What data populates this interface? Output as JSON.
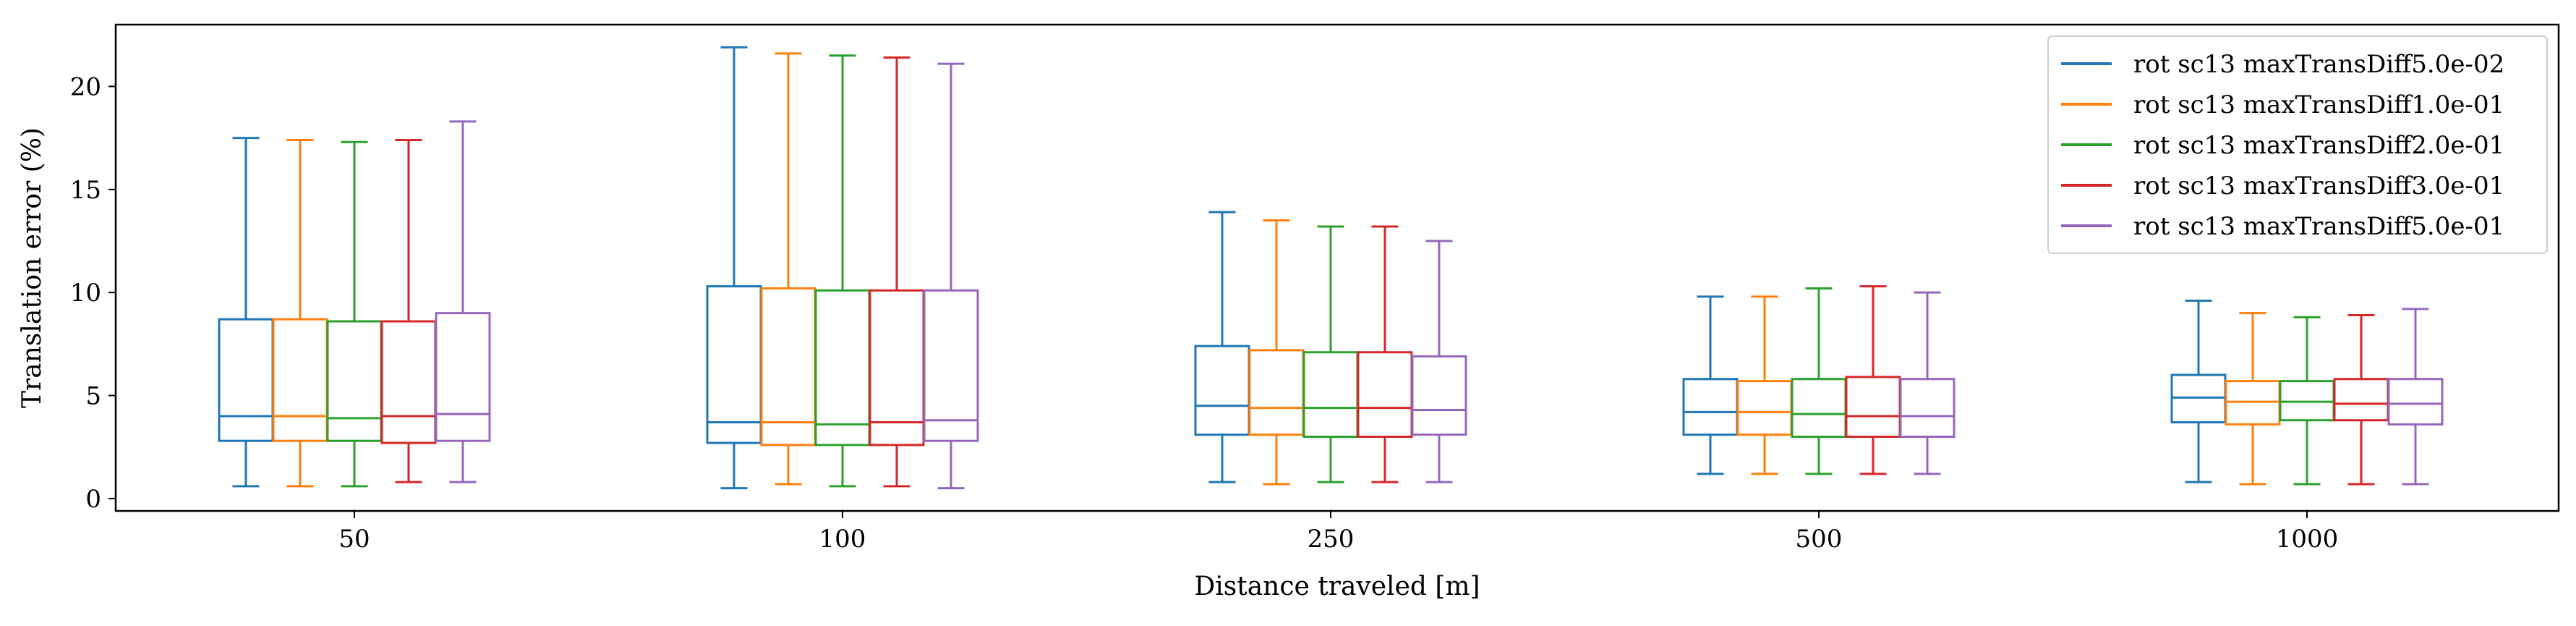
{
  "chart_data": {
    "type": "box",
    "xlabel": "Distance traveled [m]",
    "ylabel": "Translation error (%)",
    "categories": [
      "50",
      "100",
      "250",
      "500",
      "1000"
    ],
    "ylim": [
      -0.6,
      23.0
    ],
    "yticks": [
      0,
      5,
      10,
      15,
      20
    ],
    "grid": false,
    "legend_position": "top-right",
    "colors": [
      "#1f77b4",
      "#ff7f0e",
      "#2ca02c",
      "#d62728",
      "#9467bd"
    ],
    "series": [
      {
        "name": "rot sc13 maxTransDiff5.0e-02",
        "boxes": [
          {
            "min": 0.6,
            "q1": 2.8,
            "median": 4.0,
            "q3": 8.7,
            "max": 17.5
          },
          {
            "min": 0.5,
            "q1": 2.7,
            "median": 3.7,
            "q3": 10.3,
            "max": 21.9
          },
          {
            "min": 0.8,
            "q1": 3.1,
            "median": 4.5,
            "q3": 7.4,
            "max": 13.9
          },
          {
            "min": 1.2,
            "q1": 3.1,
            "median": 4.2,
            "q3": 5.8,
            "max": 9.8
          },
          {
            "min": 0.8,
            "q1": 3.7,
            "median": 4.9,
            "q3": 6.0,
            "max": 9.6
          }
        ]
      },
      {
        "name": "rot sc13 maxTransDiff1.0e-01",
        "boxes": [
          {
            "min": 0.6,
            "q1": 2.8,
            "median": 4.0,
            "q3": 8.7,
            "max": 17.4
          },
          {
            "min": 0.7,
            "q1": 2.6,
            "median": 3.7,
            "q3": 10.2,
            "max": 21.6
          },
          {
            "min": 0.7,
            "q1": 3.1,
            "median": 4.4,
            "q3": 7.2,
            "max": 13.5
          },
          {
            "min": 1.2,
            "q1": 3.1,
            "median": 4.2,
            "q3": 5.7,
            "max": 9.8
          },
          {
            "min": 0.7,
            "q1": 3.6,
            "median": 4.7,
            "q3": 5.7,
            "max": 9.0
          }
        ]
      },
      {
        "name": "rot sc13 maxTransDiff2.0e-01",
        "boxes": [
          {
            "min": 0.6,
            "q1": 2.8,
            "median": 3.9,
            "q3": 8.6,
            "max": 17.3
          },
          {
            "min": 0.6,
            "q1": 2.6,
            "median": 3.6,
            "q3": 10.1,
            "max": 21.5
          },
          {
            "min": 0.8,
            "q1": 3.0,
            "median": 4.4,
            "q3": 7.1,
            "max": 13.2
          },
          {
            "min": 1.2,
            "q1": 3.0,
            "median": 4.1,
            "q3": 5.8,
            "max": 10.2
          },
          {
            "min": 0.7,
            "q1": 3.8,
            "median": 4.7,
            "q3": 5.7,
            "max": 8.8
          }
        ]
      },
      {
        "name": "rot sc13 maxTransDiff3.0e-01",
        "boxes": [
          {
            "min": 0.8,
            "q1": 2.7,
            "median": 4.0,
            "q3": 8.6,
            "max": 17.4
          },
          {
            "min": 0.6,
            "q1": 2.6,
            "median": 3.7,
            "q3": 10.1,
            "max": 21.4
          },
          {
            "min": 0.8,
            "q1": 3.0,
            "median": 4.4,
            "q3": 7.1,
            "max": 13.2
          },
          {
            "min": 1.2,
            "q1": 3.0,
            "median": 4.0,
            "q3": 5.9,
            "max": 10.3
          },
          {
            "min": 0.7,
            "q1": 3.8,
            "median": 4.6,
            "q3": 5.8,
            "max": 8.9
          }
        ]
      },
      {
        "name": "rot sc13 maxTransDiff5.0e-01",
        "boxes": [
          {
            "min": 0.8,
            "q1": 2.8,
            "median": 4.1,
            "q3": 9.0,
            "max": 18.3
          },
          {
            "min": 0.5,
            "q1": 2.8,
            "median": 3.8,
            "q3": 10.1,
            "max": 21.1
          },
          {
            "min": 0.8,
            "q1": 3.1,
            "median": 4.3,
            "q3": 6.9,
            "max": 12.5
          },
          {
            "min": 1.2,
            "q1": 3.0,
            "median": 4.0,
            "q3": 5.8,
            "max": 10.0
          },
          {
            "min": 0.7,
            "q1": 3.6,
            "median": 4.6,
            "q3": 5.8,
            "max": 9.2
          }
        ]
      }
    ]
  }
}
